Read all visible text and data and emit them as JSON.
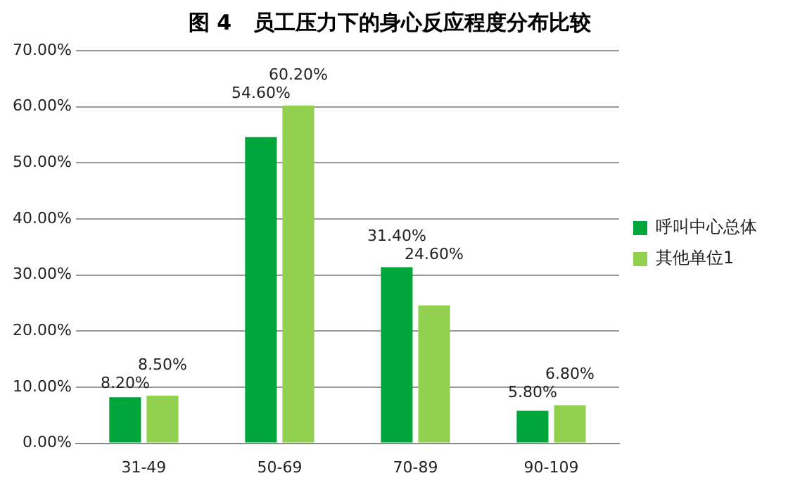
{
  "chart_data": {
    "type": "bar",
    "title": "图 4   员工压力下的身心反应程度分布比较",
    "categories": [
      "31-49",
      "50-69",
      "70-89",
      "90-109"
    ],
    "series": [
      {
        "name": "呼叫中心总体",
        "color": "#00a63c",
        "values": [
          8.2,
          54.6,
          31.4,
          5.8
        ],
        "value_labels": [
          "8.20%",
          "54.60%",
          "31.40%",
          "5.80%"
        ]
      },
      {
        "name": "其他单位1",
        "color": "#92d050",
        "values": [
          8.5,
          60.2,
          24.6,
          6.8
        ],
        "value_labels": [
          "8.50%",
          "60.20%",
          "24.60%",
          "6.80%"
        ]
      }
    ],
    "ylim": [
      0,
      70
    ],
    "yticks": [
      {
        "value": 0,
        "label": "0.00%"
      },
      {
        "value": 10,
        "label": "10.00%"
      },
      {
        "value": 20,
        "label": "20.00%"
      },
      {
        "value": 30,
        "label": "30.00%"
      },
      {
        "value": 40,
        "label": "40.00%"
      },
      {
        "value": 50,
        "label": "50.00%"
      },
      {
        "value": 60,
        "label": "60.00%"
      },
      {
        "value": 70,
        "label": "70.00%"
      }
    ],
    "grid": "y",
    "legend": "right"
  }
}
